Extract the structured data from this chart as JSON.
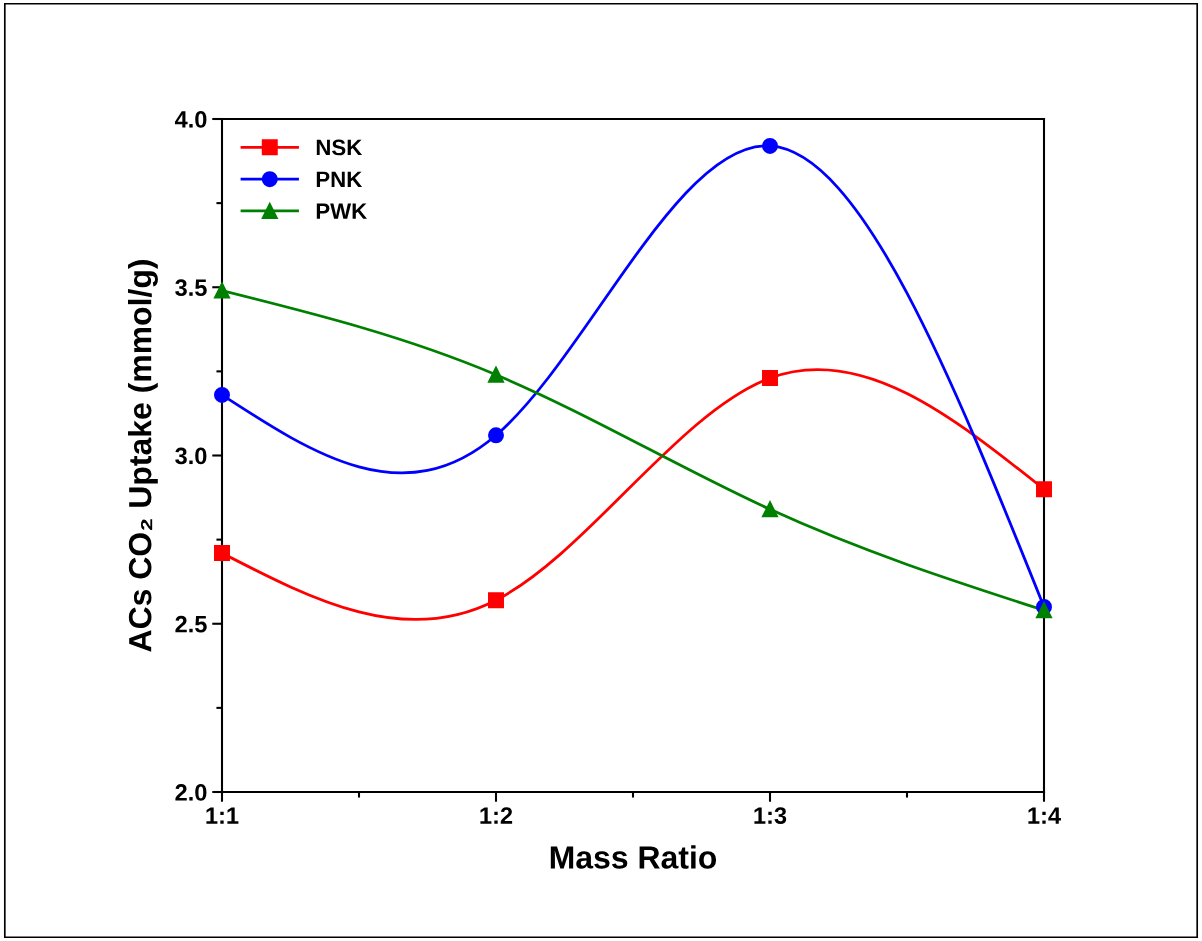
{
  "chart_data": {
    "type": "line",
    "xlabel": "Mass Ratio",
    "ylabel": "ACs CO₂ Uptake (mmol/g)",
    "categories": [
      "1:1",
      "1:2",
      "1:3",
      "1:4"
    ],
    "series": [
      {
        "name": "NSK",
        "color": "#ff0000",
        "marker": "square",
        "values": [
          2.71,
          2.57,
          3.23,
          2.9
        ]
      },
      {
        "name": "PNK",
        "color": "#0000ff",
        "marker": "circle",
        "values": [
          3.18,
          3.06,
          3.92,
          2.55
        ]
      },
      {
        "name": "PWK",
        "color": "#008000",
        "marker": "triangle",
        "values": [
          3.49,
          3.24,
          2.84,
          2.54
        ]
      }
    ],
    "ylim": [
      2.0,
      4.0
    ],
    "yticks": [
      {
        "value": 2,
        "label": "2.0"
      },
      2.5,
      {
        "value": 3,
        "label": "3.0"
      },
      3.5,
      {
        "value": 4,
        "label": "4.0"
      }
    ],
    "grid": false,
    "legend": "top left",
    "line_style": "solid"
  }
}
